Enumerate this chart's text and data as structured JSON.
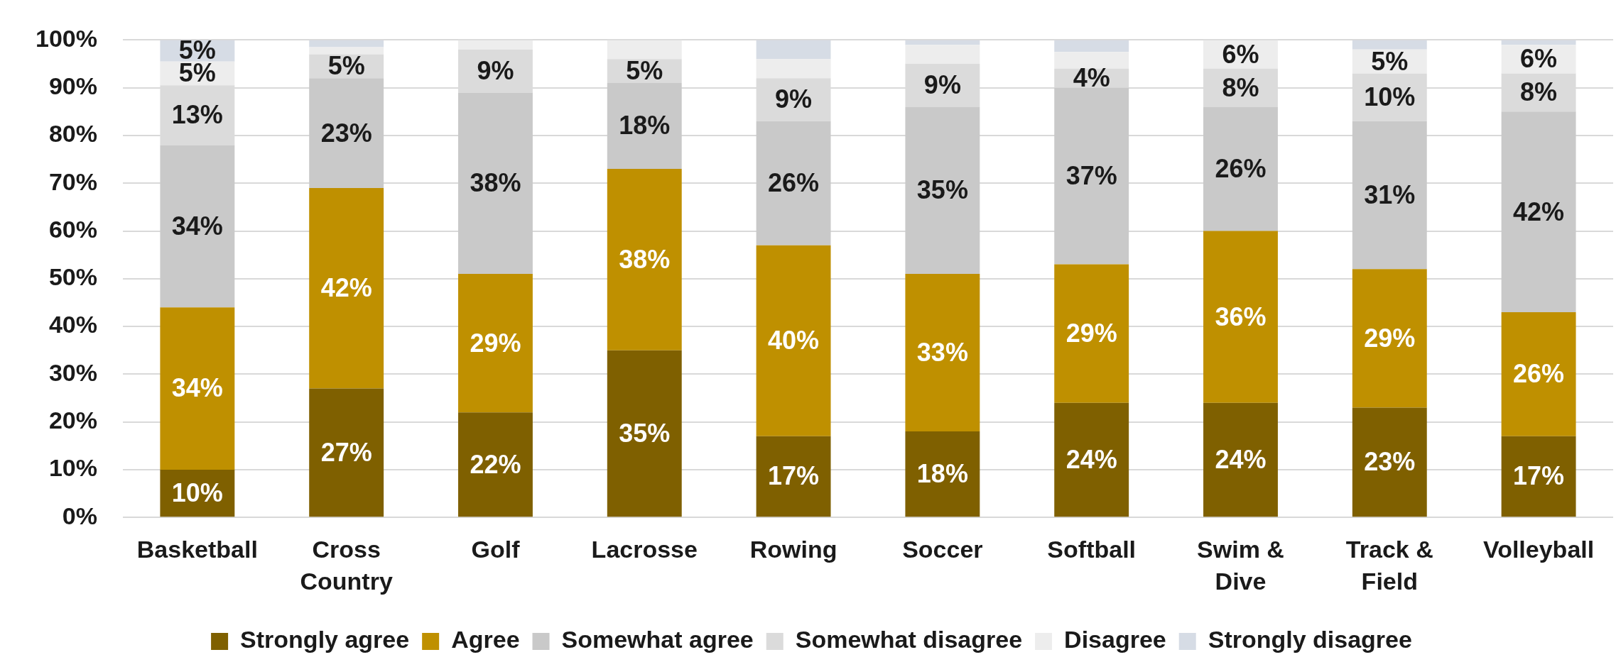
{
  "chart_data": {
    "type": "bar",
    "stacked": true,
    "grid": "y",
    "legend": "bottom",
    "categories": [
      "Basketball",
      "Cross Country",
      "Golf",
      "Lacrosse",
      "Rowing",
      "Soccer",
      "Softball",
      "Swim & Dive",
      "Track & Field",
      "Volleyball"
    ],
    "ylim": [
      0,
      100
    ],
    "yticks": [
      {
        "value": 0,
        "label": "0%"
      },
      {
        "value": 10,
        "label": "10%"
      },
      {
        "value": 20,
        "label": "20%"
      },
      {
        "value": 30,
        "label": "30%"
      },
      {
        "value": 40,
        "label": "40%"
      },
      {
        "value": 50,
        "label": "50%"
      },
      {
        "value": 60,
        "label": "60%"
      },
      {
        "value": 70,
        "label": "70%"
      },
      {
        "value": 80,
        "label": "80%"
      },
      {
        "value": 90,
        "label": "90%"
      },
      {
        "value": 100,
        "label": "100%"
      }
    ],
    "series": [
      {
        "name": "Strongly agree",
        "color": "#7f6000",
        "values": [
          10,
          27,
          22,
          35,
          17,
          18,
          24,
          24,
          23,
          17
        ],
        "value_labels": [
          "10%",
          "27%",
          "22%",
          "35%",
          "17%",
          "18%",
          "24%",
          "24%",
          "23%",
          "17%"
        ]
      },
      {
        "name": "Agree",
        "color": "#bf9000",
        "values": [
          34,
          42,
          29,
          38,
          40,
          33,
          29,
          36,
          29,
          26
        ],
        "value_labels": [
          "34%",
          "42%",
          "29%",
          "38%",
          "40%",
          "33%",
          "29%",
          "36%",
          "29%",
          "26%"
        ]
      },
      {
        "name": "Somewhat agree",
        "color": "#c9c9c9",
        "values": [
          34,
          23,
          38,
          18,
          26,
          35,
          37,
          26,
          31,
          42
        ],
        "value_labels": [
          "34%",
          "23%",
          "38%",
          "18%",
          "26%",
          "35%",
          "37%",
          "26%",
          "31%",
          "42%"
        ]
      },
      {
        "name": "Somewhat disagree",
        "color": "#dbdbdb",
        "values": [
          12.5,
          5,
          9,
          5,
          9,
          9,
          4,
          8,
          10,
          8
        ],
        "value_labels": [
          "13%",
          "5%",
          "9%",
          "5%",
          "9%",
          "9%",
          "4%",
          "8%",
          "10%",
          "8%"
        ]
      },
      {
        "name": "Disagree",
        "color": "#ededed",
        "values": [
          5,
          1.5,
          2,
          4,
          4,
          4,
          3.5,
          6,
          5,
          6
        ],
        "value_labels": [
          "5%",
          null,
          null,
          null,
          null,
          null,
          null,
          "6%",
          "5%",
          "6%"
        ]
      },
      {
        "name": "Strongly disagree",
        "color": "#d6dce5",
        "values": [
          4.5,
          1.5,
          0,
          0,
          4,
          1,
          2.5,
          0,
          2,
          1
        ],
        "value_labels": [
          "5%",
          null,
          null,
          null,
          null,
          null,
          null,
          null,
          null,
          null
        ]
      }
    ]
  }
}
